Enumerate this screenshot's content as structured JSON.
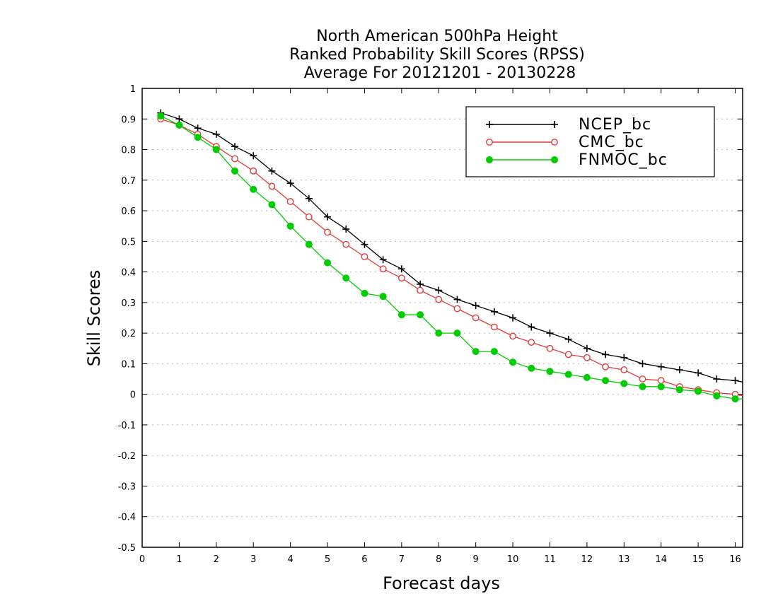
{
  "chart_data": {
    "type": "line",
    "title": [
      "North American 500hPa Height",
      "Ranked Probability Skill Scores (RPSS)",
      "Average For 20121201 - 20130228"
    ],
    "xlabel": "Forecast days",
    "ylabel": "Skill Scores",
    "xlim": [
      0,
      16.2
    ],
    "ylim": [
      -0.5,
      1
    ],
    "xticks": [
      "0",
      "1",
      "2",
      "3",
      "4",
      "5",
      "6",
      "7",
      "8",
      "9",
      "10",
      "11",
      "12",
      "13",
      "14",
      "15",
      "16"
    ],
    "yticks": [
      "1",
      "0.9",
      "0.8",
      "0.7",
      "0.6",
      "0.5",
      "0.4",
      "0.3",
      "0.2",
      "0.1",
      "0",
      "-0.1",
      "-0.2",
      "-0.3",
      "-0.4",
      "-0.5"
    ],
    "grid": true,
    "legend_position": "top-right",
    "x": [
      0.5,
      1,
      1.5,
      2,
      2.5,
      3,
      3.5,
      4,
      4.5,
      5,
      5.5,
      6,
      6.5,
      7,
      7.5,
      8,
      8.5,
      9,
      9.5,
      10,
      10.5,
      11,
      11.5,
      12,
      12.5,
      13,
      13.5,
      14,
      14.5,
      15,
      15.5,
      16,
      16.2
    ],
    "series": [
      {
        "name": "NCEP_bc",
        "color": "#000000",
        "marker": "plus",
        "values": [
          0.92,
          0.9,
          0.87,
          0.85,
          0.81,
          0.78,
          0.73,
          0.69,
          0.64,
          0.58,
          0.54,
          0.49,
          0.44,
          0.41,
          0.36,
          0.34,
          0.31,
          0.29,
          0.27,
          0.25,
          0.22,
          0.2,
          0.18,
          0.15,
          0.13,
          0.12,
          0.1,
          0.09,
          0.08,
          0.07,
          0.05,
          0.045,
          0.04
        ]
      },
      {
        "name": "CMC_bc",
        "color": "#e03c3c",
        "marker": "open-circle",
        "values": [
          0.9,
          0.88,
          0.85,
          0.81,
          0.77,
          0.73,
          0.68,
          0.63,
          0.58,
          0.53,
          0.49,
          0.45,
          0.41,
          0.38,
          0.34,
          0.31,
          0.28,
          0.25,
          0.22,
          0.19,
          0.17,
          0.15,
          0.13,
          0.12,
          0.09,
          0.08,
          0.05,
          0.045,
          0.025,
          0.015,
          0.005,
          0.0,
          -0.005
        ]
      },
      {
        "name": "FNMOC_bc",
        "color": "#00cc00",
        "marker": "filled-circle",
        "values": [
          0.91,
          0.88,
          0.84,
          0.8,
          0.73,
          0.67,
          0.62,
          0.55,
          0.49,
          0.43,
          0.38,
          0.33,
          0.32,
          0.26,
          0.26,
          0.2,
          0.2,
          0.14,
          0.14,
          0.105,
          0.085,
          0.075,
          0.065,
          0.055,
          0.045,
          0.035,
          0.025,
          0.025,
          0.015,
          0.01,
          -0.005,
          -0.015,
          -0.015
        ]
      }
    ]
  }
}
